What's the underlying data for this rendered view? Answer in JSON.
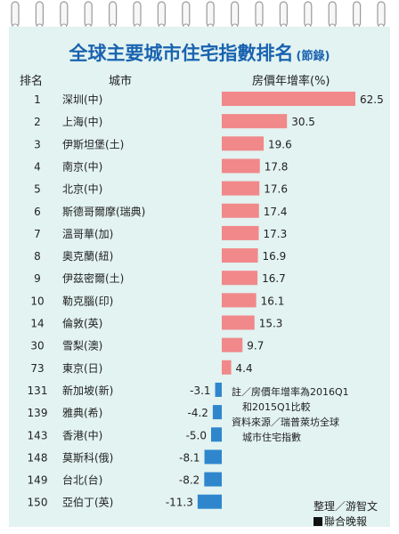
{
  "title": "全球主要城市住宅指數排名",
  "subtitle": "(節錄)",
  "headers": {
    "rank": "排名",
    "city": "城市",
    "value": "房價年增率(%)"
  },
  "notes": [
    "註／房價年增率為2016Q1",
    "和2015Q1比較",
    "資料來源／瑞普萊坊全球",
    "城市住宅指數"
  ],
  "credit_author": "整理／游智文",
  "credit_paper": "聯合晚報",
  "colors": {
    "positive": "#f1888a",
    "negative": "#2f86cd",
    "panel": "#e2f3f1",
    "title": "#1a63b0"
  },
  "chart_data": {
    "type": "bar",
    "title": "全球主要城市住宅指數排名",
    "subtitle": "(節錄)",
    "xlabel": "房價年增率(%)",
    "ranks": [
      1,
      2,
      3,
      4,
      5,
      6,
      7,
      8,
      9,
      10,
      14,
      30,
      73,
      131,
      139,
      143,
      148,
      149,
      150
    ],
    "categories": [
      "深圳(中)",
      "上海(中)",
      "伊斯坦堡(土)",
      "南京(中)",
      "北京(中)",
      "斯德哥爾摩(瑞典)",
      "溫哥華(加)",
      "奧克蘭(紐)",
      "伊茲密爾(土)",
      "勒克腦(印)",
      "倫敦(英)",
      "雪梨(澳)",
      "東京(日)",
      "新加坡(新)",
      "雅典(希)",
      "香港(中)",
      "莫斯科(俄)",
      "台北(台)",
      "亞伯丁(英)"
    ],
    "values": [
      62.5,
      30.5,
      19.6,
      17.8,
      17.6,
      17.4,
      17.3,
      16.9,
      16.7,
      16.1,
      15.3,
      9.7,
      4.4,
      -3.1,
      -4.2,
      -5.0,
      -8.1,
      -8.2,
      -11.3
    ],
    "labels": [
      "62.5",
      "30.5",
      "19.6",
      "17.8",
      "17.6",
      "17.4",
      "17.3",
      "16.9",
      "16.7",
      "16.1",
      "15.3",
      "9.7",
      "4.4",
      "-3.1",
      "-4.2",
      "-5.0",
      "-8.1",
      "-8.2",
      "-11.3"
    ],
    "grid": false,
    "legend": "none"
  }
}
